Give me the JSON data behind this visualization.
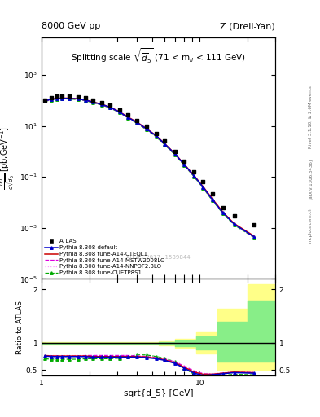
{
  "title_left": "8000 GeV pp",
  "title_right": "Z (Drell-Yan)",
  "plot_title": "Splitting scale $\\sqrt{\\overline{d}_5}$ (71 < m$_{ll}$ < 111 GeV)",
  "xlabel": "sqrt{d_5} [GeV]",
  "ylabel_main": "d$\\sigma$\ndsqrt($\\overline{d_5}$) [pb,GeV$^{-1}$]",
  "ylabel_ratio": "Ratio to ATLAS",
  "right_label_top": "Rivet 3.1.10, ≥ 2.6M events",
  "right_label_mid": "[arXiv:1306.3436]",
  "right_label_bot": "mcplots.cern.ch",
  "watermark": "ATLAS_2017_I1589844",
  "xlim": [
    1,
    30
  ],
  "main_ylim_lo": 1e-05,
  "main_ylim_hi": 30000.0,
  "ratio_ylim_lo": 0.4,
  "ratio_ylim_hi": 2.2,
  "data_x": [
    1.05,
    1.15,
    1.25,
    1.35,
    1.5,
    1.7,
    1.9,
    2.1,
    2.4,
    2.7,
    3.1,
    3.5,
    4.0,
    4.6,
    5.3,
    6.0,
    7.0,
    8.0,
    9.2,
    10.5,
    12.0,
    14.0,
    16.5,
    22.0
  ],
  "data_y": [
    105,
    130,
    145,
    148,
    148,
    140,
    125,
    107,
    85,
    66,
    43,
    27,
    17,
    9.5,
    5.2,
    2.6,
    1.0,
    0.42,
    0.16,
    0.065,
    0.022,
    0.006,
    0.003,
    0.0013
  ],
  "pythia_x": [
    1.05,
    1.15,
    1.25,
    1.35,
    1.5,
    1.7,
    1.9,
    2.1,
    2.4,
    2.7,
    3.1,
    3.5,
    4.0,
    4.6,
    5.3,
    6.0,
    7.0,
    8.0,
    9.2,
    10.5,
    12.0,
    14.0,
    16.5,
    22.0
  ],
  "default_y": [
    98,
    112,
    120,
    122,
    122,
    116,
    104,
    88,
    71,
    55,
    36,
    22,
    14,
    7.8,
    4.1,
    2.0,
    0.78,
    0.3,
    0.111,
    0.04,
    0.013,
    0.004,
    0.0014,
    0.00045
  ],
  "cteql1_y": [
    100,
    115,
    123,
    125,
    125,
    118,
    106,
    90,
    72,
    56,
    37,
    23,
    14.5,
    8.0,
    4.2,
    2.05,
    0.8,
    0.31,
    0.114,
    0.042,
    0.014,
    0.0042,
    0.00148,
    0.00048
  ],
  "mstw_y": [
    96,
    110,
    118,
    120,
    120,
    114,
    102,
    86,
    69,
    54,
    35,
    21.5,
    13.5,
    7.5,
    4.0,
    1.95,
    0.76,
    0.295,
    0.109,
    0.039,
    0.013,
    0.004,
    0.0014,
    0.00044
  ],
  "nnpdf_y": [
    97,
    111,
    119,
    121,
    121,
    115,
    103,
    87,
    70,
    55,
    36,
    22,
    13.8,
    7.7,
    4.05,
    1.97,
    0.77,
    0.298,
    0.11,
    0.04,
    0.0135,
    0.0041,
    0.00143,
    0.00046
  ],
  "cuetp_y": [
    93,
    107,
    115,
    117,
    116,
    110,
    99,
    83,
    67,
    52,
    34,
    21,
    13,
    7.2,
    3.8,
    1.85,
    0.72,
    0.28,
    0.103,
    0.037,
    0.012,
    0.0037,
    0.0013,
    0.00042
  ],
  "ratio_default": [
    0.76,
    0.75,
    0.75,
    0.75,
    0.75,
    0.75,
    0.75,
    0.74,
    0.74,
    0.74,
    0.74,
    0.74,
    0.74,
    0.73,
    0.71,
    0.68,
    0.62,
    0.53,
    0.44,
    0.4,
    0.41,
    0.43,
    0.45,
    0.44
  ],
  "ratio_cteql1": [
    0.77,
    0.76,
    0.76,
    0.76,
    0.76,
    0.76,
    0.76,
    0.75,
    0.75,
    0.75,
    0.75,
    0.75,
    0.75,
    0.74,
    0.72,
    0.69,
    0.63,
    0.55,
    0.46,
    0.42,
    0.42,
    0.44,
    0.46,
    0.45
  ],
  "ratio_mstw": [
    0.76,
    0.76,
    0.76,
    0.76,
    0.76,
    0.76,
    0.77,
    0.77,
    0.77,
    0.77,
    0.77,
    0.77,
    0.76,
    0.75,
    0.73,
    0.7,
    0.65,
    0.57,
    0.48,
    0.43,
    0.42,
    0.44,
    0.46,
    0.45
  ],
  "ratio_nnpdf": [
    0.77,
    0.77,
    0.77,
    0.77,
    0.77,
    0.77,
    0.77,
    0.77,
    0.77,
    0.77,
    0.77,
    0.77,
    0.77,
    0.76,
    0.74,
    0.71,
    0.66,
    0.58,
    0.49,
    0.44,
    0.43,
    0.45,
    0.47,
    0.46
  ],
  "ratio_cuetp": [
    0.71,
    0.7,
    0.7,
    0.7,
    0.7,
    0.7,
    0.71,
    0.71,
    0.71,
    0.71,
    0.72,
    0.75,
    0.78,
    0.78,
    0.75,
    0.72,
    0.65,
    0.53,
    0.42,
    0.37,
    0.38,
    0.4,
    0.42,
    0.41
  ],
  "yellow_band_edges": [
    1.0,
    4.0,
    5.5,
    7.0,
    9.5,
    13.0,
    20.0,
    30.0
  ],
  "yellow_band_top": [
    1.02,
    1.02,
    1.04,
    1.08,
    1.2,
    1.65,
    2.1,
    2.1
  ],
  "yellow_band_bot": [
    0.98,
    0.98,
    0.96,
    0.92,
    0.8,
    0.5,
    0.5,
    0.5
  ],
  "green_band_edges": [
    1.0,
    4.0,
    5.5,
    7.0,
    9.5,
    13.0,
    20.0,
    30.0
  ],
  "green_band_top": [
    1.01,
    1.01,
    1.02,
    1.05,
    1.12,
    1.4,
    1.8,
    1.8
  ],
  "green_band_bot": [
    0.99,
    0.99,
    0.98,
    0.95,
    0.88,
    0.65,
    0.65,
    0.65
  ],
  "color_default": "#0000cc",
  "color_cteql1": "#cc0000",
  "color_mstw": "#dd00dd",
  "color_nnpdf": "#ff99ff",
  "color_cuetp": "#00aa00",
  "color_data": "#000000",
  "color_yellow": "#ffff88",
  "color_green": "#88ee88"
}
